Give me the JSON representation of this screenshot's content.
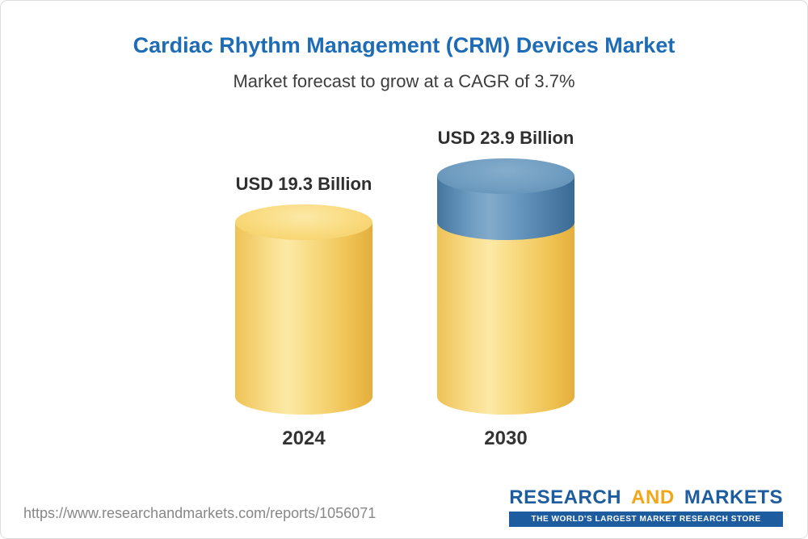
{
  "page": {
    "title": "Cardiac Rhythm Management (CRM) Devices Market",
    "subtitle": "Market forecast to grow at a CAGR of 3.7%"
  },
  "chart_data": {
    "type": "bar",
    "variant": "3d-cylinder",
    "title": "Cardiac Rhythm Management (CRM) Devices Market",
    "subtitle": "Market forecast to grow at a CAGR of 3.7%",
    "unit": "USD Billion",
    "categories": [
      "2024",
      "2030"
    ],
    "values": [
      19.3,
      23.9
    ],
    "value_labels": [
      "USD 19.3 Billion",
      "USD 23.9 Billion"
    ],
    "cagr": "3.7%",
    "baseline_value": 19.3,
    "ylim": [
      0,
      23.9
    ],
    "grid": false,
    "legend": "none",
    "colors": {
      "base_segment": "#F6CF66",
      "growth_segment": "#5E90B9"
    }
  },
  "footer": {
    "report_url": "https://www.researchandmarkets.com/reports/1056071",
    "logo": {
      "word1": "RESEARCH",
      "word2": "AND",
      "word3": "MARKETS",
      "tagline": "THE WORLD'S LARGEST MARKET RESEARCH STORE"
    }
  },
  "colors": {
    "title_blue": "#1E6CB5",
    "logo_blue": "#1D5C9E",
    "logo_yellow": "#F2A71B",
    "text_dark": "#2F2F2F",
    "url_gray": "#878787"
  }
}
